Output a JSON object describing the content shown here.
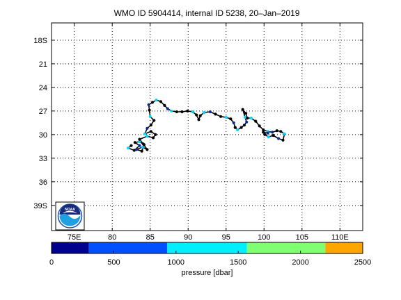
{
  "title": "WMO ID 5904414, internal ID 5238, 20–Jan–2019",
  "map": {
    "lon_range": [
      72,
      113
    ],
    "lat_range": [
      -42.2,
      -15.8
    ],
    "lat_ticks": [
      {
        "value": -18,
        "label": "18S"
      },
      {
        "value": -21,
        "label": "21"
      },
      {
        "value": -24,
        "label": "24"
      },
      {
        "value": -27,
        "label": "27"
      },
      {
        "value": -30,
        "label": "30"
      },
      {
        "value": -33,
        "label": "33"
      },
      {
        "value": -36,
        "label": "36"
      },
      {
        "value": -39,
        "label": "39S"
      }
    ],
    "lon_ticks": [
      {
        "value": 75,
        "label": "75E"
      },
      {
        "value": 80,
        "label": "80"
      },
      {
        "value": 85,
        "label": "85"
      },
      {
        "value": 90,
        "label": "90"
      },
      {
        "value": 95,
        "label": "95"
      },
      {
        "value": 100,
        "label": "100"
      },
      {
        "value": 105,
        "label": "105"
      },
      {
        "value": 110,
        "label": "110E"
      }
    ],
    "grid": "dotted",
    "track_color": "#000000",
    "track": [
      [
        82.5,
        -31.4
      ],
      [
        82.1,
        -31.7
      ],
      [
        82.9,
        -32.0
      ],
      [
        83.6,
        -31.4
      ],
      [
        83.0,
        -31.0
      ],
      [
        83.6,
        -30.9
      ],
      [
        84.2,
        -31.3
      ],
      [
        83.9,
        -32.1
      ],
      [
        83.2,
        -31.9
      ],
      [
        84.0,
        -31.6
      ],
      [
        84.6,
        -31.9
      ],
      [
        84.1,
        -31.2
      ],
      [
        83.6,
        -30.6
      ],
      [
        84.6,
        -30.2
      ],
      [
        85.4,
        -30.4
      ],
      [
        85.7,
        -30.0
      ],
      [
        85.1,
        -29.6
      ],
      [
        84.3,
        -29.9
      ],
      [
        84.6,
        -29.2
      ],
      [
        85.1,
        -28.8
      ],
      [
        85.5,
        -28.2
      ],
      [
        85.0,
        -27.7
      ],
      [
        84.9,
        -26.9
      ],
      [
        84.8,
        -26.2
      ],
      [
        85.3,
        -25.9
      ],
      [
        85.8,
        -25.6
      ],
      [
        86.4,
        -25.8
      ],
      [
        86.9,
        -26.3
      ],
      [
        87.3,
        -26.7
      ],
      [
        87.8,
        -27.0
      ],
      [
        88.5,
        -27.1
      ],
      [
        89.2,
        -27.1
      ],
      [
        89.9,
        -27.0
      ],
      [
        90.6,
        -27.1
      ],
      [
        91.1,
        -27.5
      ],
      [
        91.4,
        -28.1
      ],
      [
        91.6,
        -27.6
      ],
      [
        92.1,
        -27.2
      ],
      [
        92.9,
        -27.1
      ],
      [
        93.6,
        -27.4
      ],
      [
        94.3,
        -27.7
      ],
      [
        95.0,
        -27.8
      ],
      [
        95.6,
        -28.0
      ],
      [
        96.0,
        -28.5
      ],
      [
        96.2,
        -29.1
      ],
      [
        96.5,
        -29.4
      ],
      [
        97.0,
        -29.1
      ],
      [
        97.4,
        -28.8
      ],
      [
        97.7,
        -28.4
      ],
      [
        97.5,
        -27.8
      ],
      [
        97.2,
        -26.8
      ],
      [
        97.6,
        -27.3
      ],
      [
        97.8,
        -27.9
      ],
      [
        98.3,
        -27.9
      ],
      [
        98.9,
        -28.3
      ],
      [
        99.4,
        -28.9
      ],
      [
        99.9,
        -29.4
      ],
      [
        100.5,
        -29.6
      ],
      [
        101.1,
        -29.7
      ],
      [
        101.7,
        -29.5
      ],
      [
        102.2,
        -29.6
      ],
      [
        102.7,
        -29.9
      ],
      [
        102.5,
        -30.7
      ],
      [
        101.9,
        -30.5
      ],
      [
        101.2,
        -30.1
      ],
      [
        100.6,
        -30.3
      ],
      [
        100.1,
        -30.0
      ],
      [
        99.9,
        -29.7
      ],
      [
        100.5,
        -29.8
      ]
    ]
  },
  "logo": {
    "text": "NOAA"
  },
  "colorbar": {
    "label": "pressure [dbar]",
    "range": [
      0,
      2500
    ],
    "ticks": [
      {
        "value": 0,
        "label": "0"
      },
      {
        "value": 500,
        "label": "500"
      },
      {
        "value": 1000,
        "label": "1000"
      },
      {
        "value": 1500,
        "label": "1500"
      },
      {
        "value": 2000,
        "label": "2000"
      },
      {
        "value": 2500,
        "label": "2500"
      }
    ],
    "bins": [
      {
        "from": 0,
        "to": 300,
        "color": "#00008f"
      },
      {
        "from": 300,
        "to": 930,
        "color": "#0050ff"
      },
      {
        "from": 930,
        "to": 1570,
        "color": "#00efff"
      },
      {
        "from": 1570,
        "to": 2200,
        "color": "#80ff70"
      },
      {
        "from": 2200,
        "to": 2500,
        "color": "#ffa500"
      }
    ]
  }
}
